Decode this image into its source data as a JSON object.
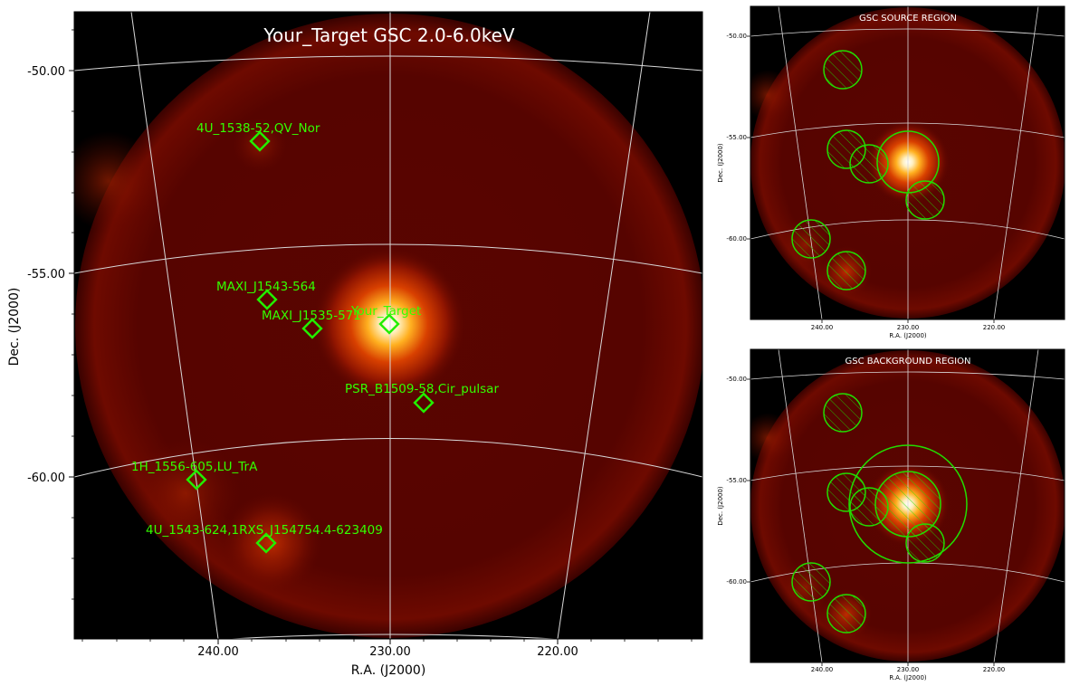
{
  "main_panel": {
    "title": "Your_Target GSC 2.0-6.0keV",
    "xlabel": "R.A. (J2000)",
    "ylabel": "Dec. (J2000)",
    "xticks": [
      "240.00",
      "230.00",
      "220.00"
    ],
    "yticks": [
      "-50.00",
      "-55.00",
      "-60.00"
    ]
  },
  "source_panel": {
    "title": "GSC SOURCE REGION",
    "xlabel": "R.A. (J2000)",
    "ylabel": "Dec. (J2000)",
    "xticks": [
      "240.00",
      "230.00",
      "220.00"
    ],
    "yticks": [
      "-50.00",
      "-55.00",
      "-60.00"
    ]
  },
  "background_panel": {
    "title": "GSC BACKGROUND REGION",
    "xlabel": "R.A. (J2000)",
    "ylabel": "Dec. (J2000)",
    "xticks": [
      "240.00",
      "230.00",
      "220.00"
    ],
    "yticks": [
      "-50.00",
      "-55.00",
      "-60.00"
    ]
  },
  "colors": {
    "marker": "#22ee00",
    "label": "#33ff00",
    "region": "#22dd00",
    "grid": "#d8d8d8",
    "title": "#ffffff"
  },
  "chart_data": {
    "type": "heatmap",
    "sources": [
      {
        "name": "4U_1538-52,QV_Nor",
        "ra": 237.6,
        "dec": -51.8
      },
      {
        "name": "MAXI_J1543-564",
        "ra": 237.2,
        "dec": -55.7
      },
      {
        "name": "MAXI_J1535-571",
        "ra": 234.5,
        "dec": -56.4
      },
      {
        "name": "Your_Target",
        "ra": 230.0,
        "dec": -56.3
      },
      {
        "name": "PSR_B1509-58,Cir_pulsar",
        "ra": 228.0,
        "dec": -58.1
      },
      {
        "name": "1H_1556-605,LU_TrA",
        "ra": 241.5,
        "dec": -60.1
      },
      {
        "name": "4U_1543-624,1RXS_J154754.4-623409",
        "ra": 237.2,
        "dec": -61.7
      }
    ]
  }
}
